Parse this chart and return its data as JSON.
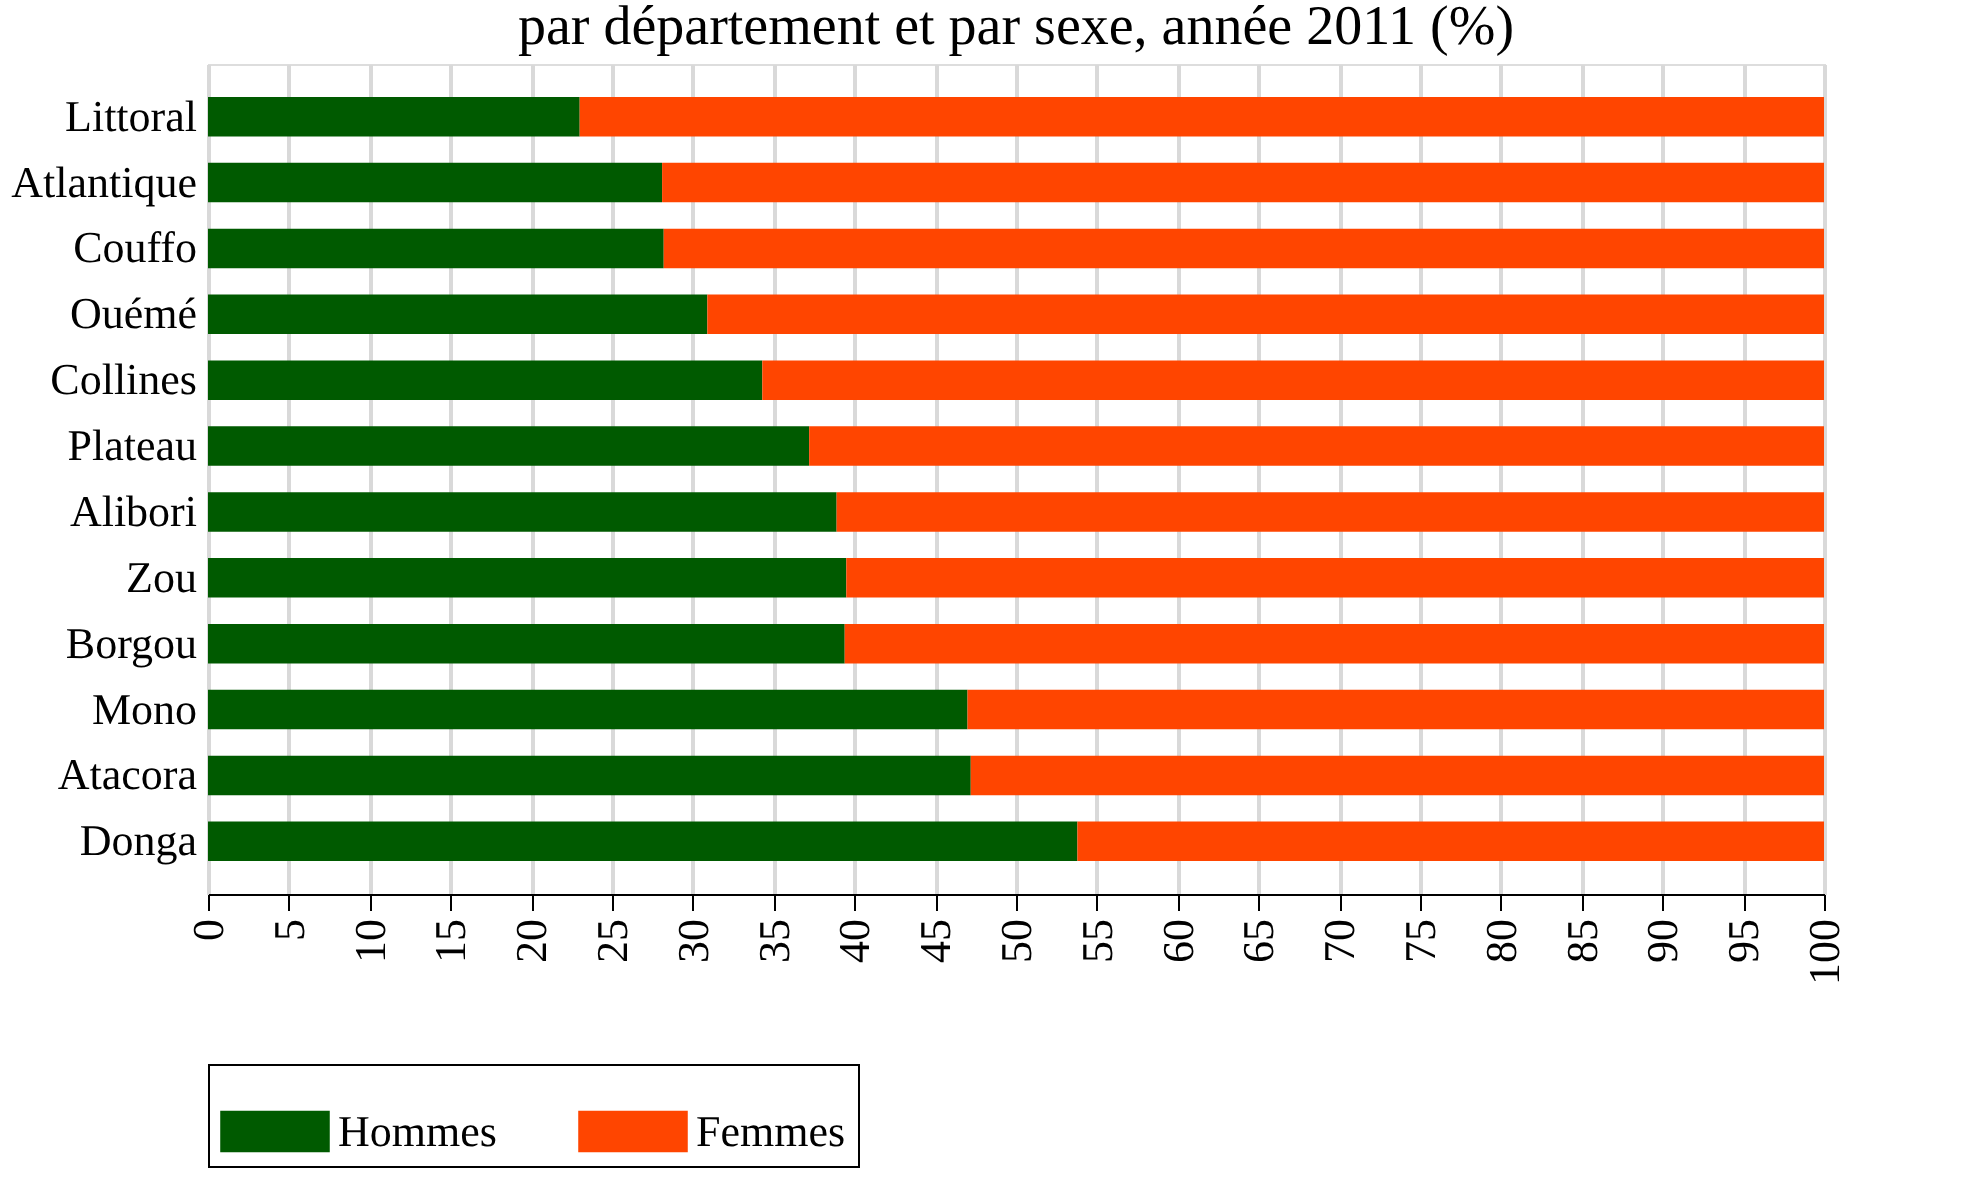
{
  "chart_data": {
    "type": "bar",
    "orientation": "horizontal",
    "stacked": true,
    "title": "par département et par sexe, année 2011 (%)",
    "categories": [
      "Littoral",
      "Atlantique",
      "Couffo",
      "Ouémé",
      "Collines",
      "Plateau",
      "Alibori",
      "Zou",
      "Borgou",
      "Mono",
      "Atacora",
      "Donga"
    ],
    "series": [
      {
        "name": "Hommes",
        "color": "#005a00",
        "values": [
          23.0,
          28.1,
          28.2,
          30.9,
          34.3,
          37.2,
          38.9,
          39.5,
          39.4,
          47.0,
          47.2,
          53.8
        ]
      },
      {
        "name": "Femmes",
        "color": "#ff4500",
        "values": [
          77.0,
          71.9,
          71.8,
          69.1,
          65.7,
          62.8,
          61.1,
          60.5,
          60.6,
          53.0,
          52.8,
          46.2
        ]
      }
    ],
    "xlim": [
      0,
      100
    ],
    "xticks": [
      0,
      5,
      10,
      15,
      20,
      25,
      30,
      35,
      40,
      45,
      50,
      55,
      60,
      65,
      70,
      75,
      80,
      85,
      90,
      95,
      100
    ],
    "grid": "x",
    "legend": "bottom"
  }
}
